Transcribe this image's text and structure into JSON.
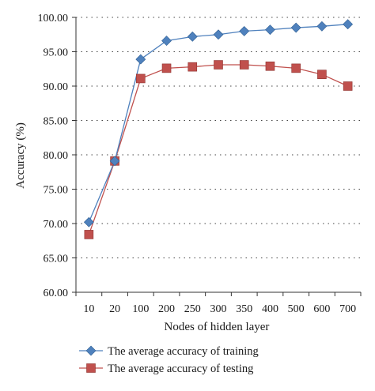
{
  "chart_data": {
    "type": "line",
    "xlabel": "Nodes of hidden layer",
    "ylabel": "Accuracy (%)",
    "categories": [
      "10",
      "20",
      "100",
      "200",
      "250",
      "300",
      "350",
      "400",
      "500",
      "600",
      "700"
    ],
    "ylim": [
      60,
      100
    ],
    "y_ticks": [
      "60.00",
      "65.00",
      "70.00",
      "75.00",
      "80.00",
      "85.00",
      "90.00",
      "95.00",
      "100.00"
    ],
    "grid": "horizontal dotted",
    "legend_placement": "bottom",
    "series": [
      {
        "name": "The average accuracy of training",
        "color": "#4f81bd",
        "marker": "diamond",
        "values": [
          70.2,
          79.1,
          93.9,
          96.6,
          97.2,
          97.5,
          98.0,
          98.2,
          98.5,
          98.7,
          99.0
        ]
      },
      {
        "name": "The average accuracy of testing",
        "color": "#c0504d",
        "marker": "square",
        "values": [
          68.4,
          79.1,
          91.1,
          92.6,
          92.8,
          93.1,
          93.1,
          92.9,
          92.6,
          91.7,
          90.0
        ]
      }
    ]
  }
}
